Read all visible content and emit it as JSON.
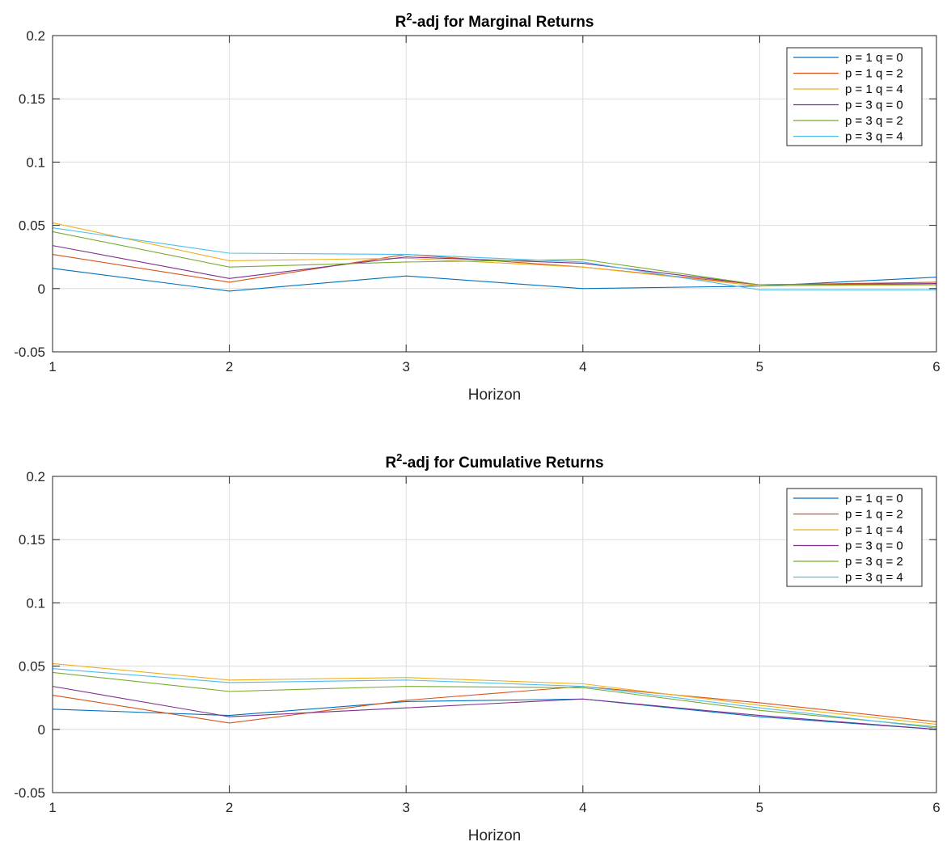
{
  "chart_data": [
    {
      "type": "line",
      "title_prefix": "R",
      "title_sup": "2",
      "title_suffix": "-adj for Marginal Returns",
      "xlabel": "Horizon",
      "ylabel": "",
      "x": [
        1,
        2,
        3,
        4,
        5,
        6
      ],
      "xlim": [
        1,
        6
      ],
      "ylim": [
        -0.05,
        0.2
      ],
      "xticks": [
        "1",
        "2",
        "3",
        "4",
        "5",
        "6"
      ],
      "yticks": [
        "-0.05",
        "0",
        "0.05",
        "0.1",
        "0.15",
        "0.2"
      ],
      "grid": true,
      "legend_position": "top-right",
      "series": [
        {
          "name": "p = 1 q = 0",
          "color": "#0072BD",
          "values": [
            0.016,
            -0.002,
            0.01,
            0.0,
            0.002,
            0.009
          ]
        },
        {
          "name": "p = 1 q = 2",
          "color": "#D95319",
          "values": [
            0.027,
            0.005,
            0.027,
            0.017,
            0.003,
            0.005
          ]
        },
        {
          "name": "p = 1 q = 4",
          "color": "#EDB120",
          "values": [
            0.052,
            0.022,
            0.024,
            0.017,
            0.002,
            0.003
          ]
        },
        {
          "name": "p = 3 q = 0",
          "color": "#7E2F8E",
          "values": [
            0.034,
            0.008,
            0.025,
            0.02,
            0.003,
            0.004
          ]
        },
        {
          "name": "p = 3 q = 2",
          "color": "#77AC30",
          "values": [
            0.045,
            0.017,
            0.021,
            0.023,
            0.003,
            0.003
          ]
        },
        {
          "name": "p = 3 q = 4",
          "color": "#4DBEEE",
          "values": [
            0.048,
            0.028,
            0.027,
            0.021,
            -0.001,
            -0.001
          ]
        }
      ]
    },
    {
      "type": "line",
      "title_prefix": "R",
      "title_sup": "2",
      "title_suffix": "-adj for Cumulative Returns",
      "xlabel": "Horizon",
      "ylabel": "",
      "x": [
        1,
        2,
        3,
        4,
        5,
        6
      ],
      "xlim": [
        1,
        6
      ],
      "ylim": [
        -0.05,
        0.2
      ],
      "xticks": [
        "1",
        "2",
        "3",
        "4",
        "5",
        "6"
      ],
      "yticks": [
        "-0.05",
        "0",
        "0.05",
        "0.1",
        "0.15",
        "0.2"
      ],
      "grid": true,
      "legend_position": "top-right",
      "series": [
        {
          "name": "p = 1 q = 0",
          "color": "#0072BD",
          "values": [
            0.016,
            0.011,
            0.022,
            0.024,
            0.01,
            0.0
          ]
        },
        {
          "name": "p = 1 q = 2",
          "color": "#D95319",
          "values": [
            0.027,
            0.005,
            0.023,
            0.034,
            0.021,
            0.006
          ]
        },
        {
          "name": "p = 1 q = 4",
          "color": "#EDB120",
          "values": [
            0.052,
            0.039,
            0.041,
            0.036,
            0.019,
            0.004
          ]
        },
        {
          "name": "p = 3 q = 0",
          "color": "#7E2F8E",
          "values": [
            0.034,
            0.01,
            0.017,
            0.024,
            0.011,
            0.0
          ]
        },
        {
          "name": "p = 3 q = 2",
          "color": "#77AC30",
          "values": [
            0.045,
            0.03,
            0.034,
            0.033,
            0.015,
            0.002
          ]
        },
        {
          "name": "p = 3 q = 4",
          "color": "#4DBEEE",
          "values": [
            0.048,
            0.037,
            0.039,
            0.034,
            0.017,
            0.001
          ]
        }
      ]
    }
  ]
}
